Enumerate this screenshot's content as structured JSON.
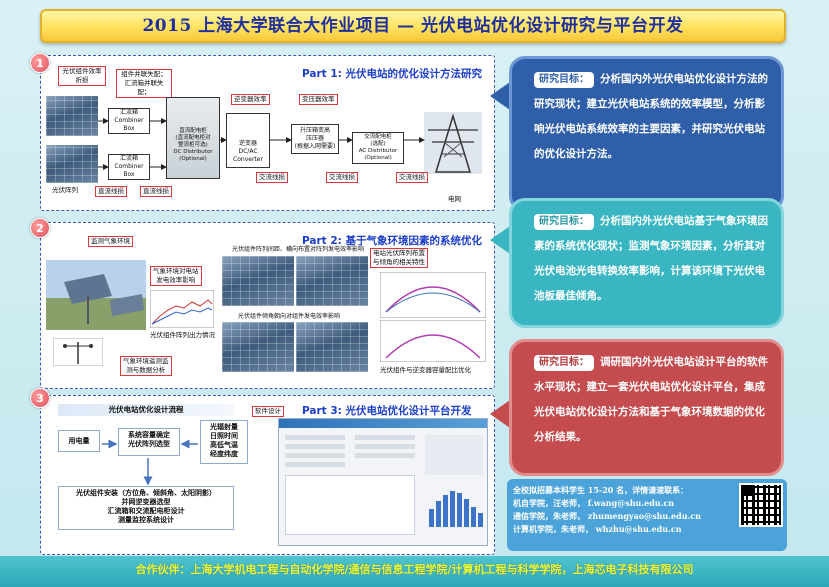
{
  "title": "2015 上海大学联合大作业项目 — 光伏电站优化设计研究与平台开发",
  "part1": {
    "number": "1",
    "title": "Part 1: 光伏电站的优化设计方法研究",
    "labels": {
      "pv_efficiency": "光伏组件效率\n折损",
      "combiner_loss": "组件并联失配；\n汇流箱并联失配；",
      "combiner_box_1": "汇流箱\nCombiner Box",
      "combiner_box_2": "汇流箱\nCombiner Box",
      "dc_distributor": "直流配电柜\n(直流配电柜对\n整流柜可选)\nDC Distributor\n(Optional)",
      "inverter_eff": "逆变器效率",
      "inverter": "逆变器\nDC/AC Converter",
      "transformer_eff": "变压器效率",
      "transformer": "升压箱变高\n压压器\n(根据入网需要)",
      "ac_distributor": "交流配电柜\n(选配)\nAC Distributor\n(Optional)",
      "grid": "电网",
      "pv_array": "光伏阵列",
      "dc_line_1": "直流线损",
      "dc_line_2": "直流线损",
      "ac_line_1": "交流线损",
      "ac_line_2": "交流线损",
      "ac_line_3": "交流线损"
    }
  },
  "part2": {
    "number": "2",
    "title": "Part 2: 基于气象环境因素的系统优化",
    "labels": {
      "weather_monitor": "监测气象环境",
      "env_effect": "气象环境对电站\n发电效率影响",
      "output_curve": "光伏组件阵列出力情况",
      "weather_data": "气象环境遥测监\n测与数据分析",
      "spacing_effect": "光伏组件阵列间距、横向布置对阵列发电效率影响",
      "tilt_effect": "光伏组件倾角朝向对组件发电效率影响",
      "angle_relation": "电站光伏阵列布置\n与倾角的相关特性",
      "inverter_ratio": "光伏组件与逆变器容量配比优化"
    }
  },
  "part3": {
    "number": "3",
    "title": "Part 3: 光伏电站优化设计平台开发",
    "software_label": "软件设计",
    "flow_title": "光伏电站优化设计流程",
    "flow": {
      "load": "用电量",
      "capacity": "系统容量确定\n光伏阵列选型",
      "weather": "光辐射量\n日照时间\n高低气温\n经度纬度",
      "bottom": "光伏组件安装（方位角、倾斜角、太阳阴影）\n并网逆变器选型\n汇流箱和交流配电柜设计\n测量监控系统设计"
    }
  },
  "callouts": [
    {
      "tag": "研究目标：",
      "text": "分析国内外光伏电站优化设计方法的研究现状；建立光伏电站系统的效率模型，分析影响光伏电站系统效率的主要因素，并研究光伏电站的优化设计方法。",
      "color": "#2f5fa8"
    },
    {
      "tag": "研究目标：",
      "text": "分析国内外光伏电站基于气象环境因素的系统优化现状；监测气象环境因素，分析其对光伏电池光电转换效率影响，计算该环境下光伏电池板最佳倾角。",
      "color": "#3ab6c2"
    },
    {
      "tag": "研究目标：",
      "text": "调研国内外光伏电站设计平台的软件水平现状；建立一套光伏电站优化设计平台，集成光伏电站优化设计方法和基于气象环境数据的优化分析结果。",
      "color": "#c44c4e"
    }
  ],
  "recruit": {
    "headline": "全校拟招募本科学生 15-20 名，详情请速联系：",
    "lines": [
      "机自学院，汪老师，  f.wang@shu.edu.cn",
      "通信学院，朱老师，  zhumengyao@shu.edu.cn",
      "计算机学院，朱老师， whzhu@shu.edu.cn"
    ]
  },
  "qr_label": "",
  "footer": "合作伙伴：上海大学机电工程与自动化学院/通信与信息工程学院/计算机工程与科学学院，上海芯电子科技有限公司"
}
